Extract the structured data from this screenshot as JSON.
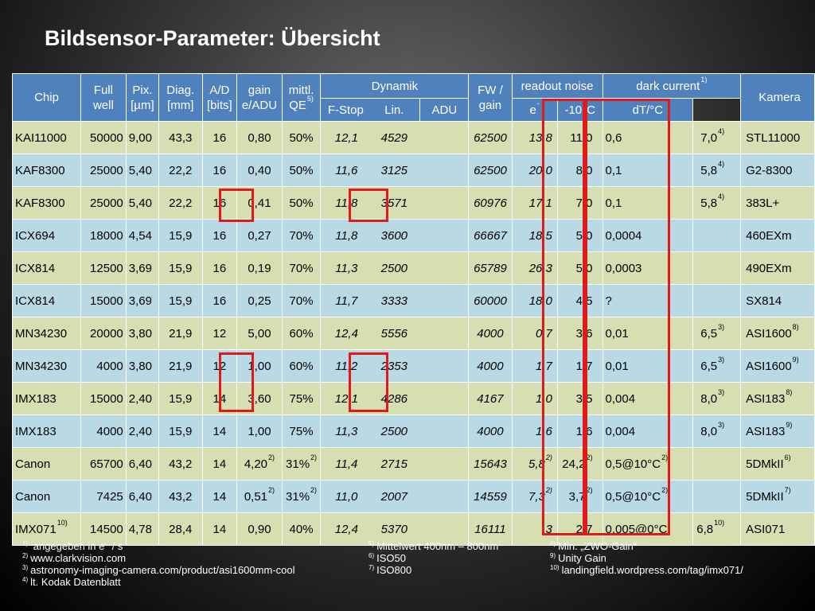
{
  "title": "Bildsensor-Parameter: Übersicht",
  "header": {
    "chip": "Chip",
    "full_well_1": "Full",
    "full_well_2": "well",
    "pix_1": "Pix.",
    "pix_2": "[µm]",
    "diag_1": "Diag.",
    "diag_2": "[mm]",
    "ad_1": "A/D",
    "ad_2": "[bits]",
    "gain_1": "gain",
    "gain_2": "e/ADU",
    "qe_1": "mittl.",
    "qe_2": "QE",
    "qe_sup": "5)",
    "dynamik": "Dynamik",
    "fstop": "F-Stop",
    "lin": "Lin.",
    "fw_1": "FW /",
    "fw_2": "gain",
    "readout": "readout noise",
    "adu": "ADU",
    "e": "e",
    "e_sup": "-",
    "dark": "dark current",
    "dark_sup": "1)",
    "minus10": "-10°C",
    "dtdc": "dT/°C",
    "kamera": "Kamera"
  },
  "rows": [
    {
      "chip": "KAI11000",
      "chip_sup": "",
      "fw": "50000",
      "pix": "9,00",
      "diag": "43,3",
      "ad": "16",
      "gain": "0,80",
      "gain_sup": "",
      "qe": "50%",
      "qe_sup": "",
      "fstop": "12,1",
      "lin": "4529",
      "fwg": "62500",
      "adu": "13,8",
      "adu_sup": "",
      "e": "11,0",
      "e_sup": "",
      "dark": "0,6",
      "dark_sup": "",
      "dt": "7,0",
      "dt_sup": "4)",
      "cam": "STL11000",
      "cam_sup": ""
    },
    {
      "chip": "KAF8300",
      "chip_sup": "",
      "fw": "25000",
      "pix": "5,40",
      "diag": "22,2",
      "ad": "16",
      "gain": "0,40",
      "gain_sup": "",
      "qe": "50%",
      "qe_sup": "",
      "fstop": "11,6",
      "lin": "3125",
      "fwg": "62500",
      "adu": "20,0",
      "adu_sup": "",
      "e": "8,0",
      "e_sup": "",
      "dark": "0,1",
      "dark_sup": "",
      "dt": "5,8",
      "dt_sup": "4)",
      "cam": "G2-8300",
      "cam_sup": ""
    },
    {
      "chip": "KAF8300",
      "chip_sup": "",
      "fw": "25000",
      "pix": "5,40",
      "diag": "22,2",
      "ad": "16",
      "gain": "0,41",
      "gain_sup": "",
      "qe": "50%",
      "qe_sup": "",
      "fstop": "11,8",
      "lin": "3571",
      "fwg": "60976",
      "adu": "17,1",
      "adu_sup": "",
      "e": "7,0",
      "e_sup": "",
      "dark": "0,1",
      "dark_sup": "",
      "dt": "5,8",
      "dt_sup": "4)",
      "cam": "383L+",
      "cam_sup": ""
    },
    {
      "chip": "ICX694",
      "chip_sup": "",
      "fw": "18000",
      "pix": "4,54",
      "diag": "15,9",
      "ad": "16",
      "gain": "0,27",
      "gain_sup": "",
      "qe": "70%",
      "qe_sup": "",
      "fstop": "11,8",
      "lin": "3600",
      "fwg": "66667",
      "adu": "18,5",
      "adu_sup": "",
      "e": "5,0",
      "e_sup": "",
      "dark": "0,0004",
      "dark_sup": "",
      "dt": "",
      "dt_sup": "",
      "cam": "460EXm",
      "cam_sup": ""
    },
    {
      "chip": "ICX814",
      "chip_sup": "",
      "fw": "12500",
      "pix": "3,69",
      "diag": "15,9",
      "ad": "16",
      "gain": "0,19",
      "gain_sup": "",
      "qe": "70%",
      "qe_sup": "",
      "fstop": "11,3",
      "lin": "2500",
      "fwg": "65789",
      "adu": "26,3",
      "adu_sup": "",
      "e": "5,0",
      "e_sup": "",
      "dark": "0,0003",
      "dark_sup": "",
      "dt": "",
      "dt_sup": "",
      "cam": "490EXm",
      "cam_sup": ""
    },
    {
      "chip": "ICX814",
      "chip_sup": "",
      "fw": "15000",
      "pix": "3,69",
      "diag": "15,9",
      "ad": "16",
      "gain": "0,25",
      "gain_sup": "",
      "qe": "70%",
      "qe_sup": "",
      "fstop": "11,7",
      "lin": "3333",
      "fwg": "60000",
      "adu": "18,0",
      "adu_sup": "",
      "e": "4,5",
      "e_sup": "",
      "dark": " ?",
      "dark_sup": "",
      "dt": "",
      "dt_sup": "",
      "cam": "SX814",
      "cam_sup": ""
    },
    {
      "chip": "MN34230",
      "chip_sup": "",
      "fw": "20000",
      "pix": "3,80",
      "diag": "21,9",
      "ad": "12",
      "gain": "5,00",
      "gain_sup": "",
      "qe": "60%",
      "qe_sup": "",
      "fstop": "12,4",
      "lin": "5556",
      "fwg": "4000",
      "adu": "0,7",
      "adu_sup": "",
      "e": "3,6",
      "e_sup": "",
      "dark": "0,01",
      "dark_sup": "",
      "dt": "6,5",
      "dt_sup": "3)",
      "cam": "ASI1600",
      "cam_sup": "8)"
    },
    {
      "chip": "MN34230",
      "chip_sup": "",
      "fw": "4000",
      "pix": "3,80",
      "diag": "21,9",
      "ad": "12",
      "gain": "1,00",
      "gain_sup": "",
      "qe": "60%",
      "qe_sup": "",
      "fstop": "11,2",
      "lin": "2353",
      "fwg": "4000",
      "adu": "1,7",
      "adu_sup": "",
      "e": "1,7",
      "e_sup": "",
      "dark": "0,01",
      "dark_sup": "",
      "dt": "6,5",
      "dt_sup": "3)",
      "cam": "ASI1600",
      "cam_sup": "9)"
    },
    {
      "chip": "IMX183",
      "chip_sup": "",
      "fw": "15000",
      "pix": "2,40",
      "diag": "15,9",
      "ad": "14",
      "gain": "3,60",
      "gain_sup": "",
      "qe": "75%",
      "qe_sup": "",
      "fstop": "12,1",
      "lin": "4286",
      "fwg": "4167",
      "adu": "1,0",
      "adu_sup": "",
      "e": "3,5",
      "e_sup": "",
      "dark": "0,004",
      "dark_sup": "",
      "dt": "8,0",
      "dt_sup": "3)",
      "cam": "ASI183",
      "cam_sup": "8)"
    },
    {
      "chip": "IMX183",
      "chip_sup": "",
      "fw": "4000",
      "pix": "2,40",
      "diag": "15,9",
      "ad": "14",
      "gain": "1,00",
      "gain_sup": "",
      "qe": "75%",
      "qe_sup": "",
      "fstop": "11,3",
      "lin": "2500",
      "fwg": "4000",
      "adu": "1,6",
      "adu_sup": "",
      "e": "1,6",
      "e_sup": "",
      "dark": "0,004",
      "dark_sup": "",
      "dt": "8,0",
      "dt_sup": "3)",
      "cam": "ASI183",
      "cam_sup": "9)"
    },
    {
      "chip": "Canon",
      "chip_sup": "",
      "fw": "65700",
      "pix": "6,40",
      "diag": "43,2",
      "ad": "14",
      "gain": "4,20",
      "gain_sup": "2)",
      "qe": "31%",
      "qe_sup": "2)",
      "fstop": "11,4",
      "lin": "2715",
      "fwg": "15643",
      "adu": "5,8",
      "adu_sup": "2)",
      "e": "24,2",
      "e_sup": "2)",
      "dark": "0,5@10°C",
      "dark_sup": "2)",
      "dt": "",
      "dt_sup": "",
      "cam": "5DMkII",
      "cam_sup": "6)"
    },
    {
      "chip": "Canon",
      "chip_sup": "",
      "fw": "7425",
      "pix": "6,40",
      "diag": "43,2",
      "ad": "14",
      "gain": "0,51",
      "gain_sup": "2)",
      "qe": "31%",
      "qe_sup": "2)",
      "fstop": "11,0",
      "lin": "2007",
      "fwg": "14559",
      "adu": "7,3",
      "adu_sup": "2)",
      "e": "3,7",
      "e_sup": "2)",
      "dark": "0,5@10°C",
      "dark_sup": "2)",
      "dt": "",
      "dt_sup": "",
      "cam": "5DMkII",
      "cam_sup": "7)"
    },
    {
      "chip": "IMX071",
      "chip_sup": "10)",
      "fw": "14500",
      "pix": "4,78",
      "diag": "28,4",
      "ad": "14",
      "gain": "0,90",
      "gain_sup": "",
      "qe": "40%",
      "qe_sup": "",
      "fstop": "12,4",
      "lin": "5370",
      "fwg": "16111",
      "adu": "3",
      "adu_sup": "",
      "e": "2,7",
      "e_sup": "",
      "dark": "0,005@0°C",
      "dark_sup": "",
      "dt": "6,8",
      "dt_sup": "10)",
      "cam": "ASI071",
      "cam_sup": ""
    }
  ],
  "footnotes_left": [
    {
      "num": "1)",
      "text": " angegeben in e",
      "sup2": "-",
      "tail": " / s"
    },
    {
      "num": "2)",
      "text": "www.clarkvision.com",
      "sup2": "",
      "tail": ""
    },
    {
      "num": "3)",
      "text": "astronomy-imaging-camera.com/product/asi1600mm-cool",
      "sup2": "",
      "tail": ""
    },
    {
      "num": "4)",
      "text": "lt. Kodak Datenblatt",
      "sup2": "",
      "tail": ""
    }
  ],
  "footnotes_mid": [
    {
      "num": "5)",
      "text": "Mittelwert 400nm – 800nm"
    },
    {
      "num": "6)",
      "text": "ISO50"
    },
    {
      "num": "7)",
      "text": "ISO800"
    }
  ],
  "footnotes_right": [
    {
      "num": "8)",
      "text": "Min. „ZWO-Gain“"
    },
    {
      "num": "9)",
      "text": "Unity Gain"
    },
    {
      "num": "10)",
      "text": "landingfield.wordpress.com/tag/imx071/"
    }
  ]
}
